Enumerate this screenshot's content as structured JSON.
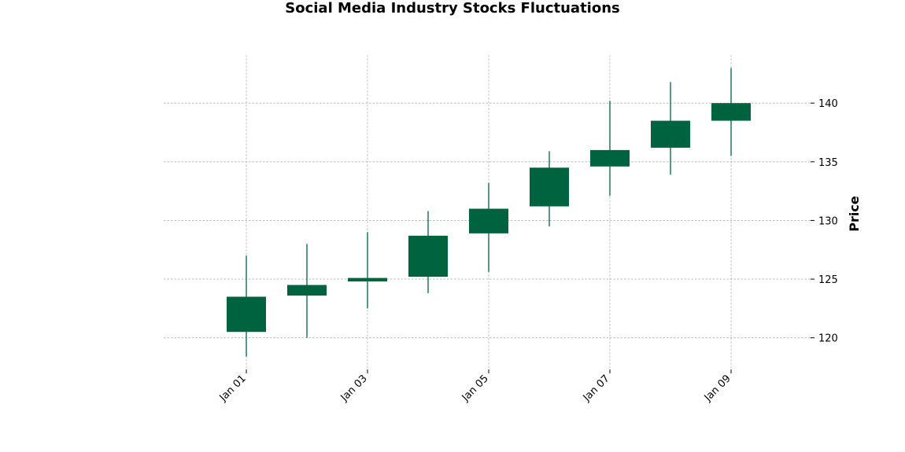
{
  "chart_data": {
    "type": "candlestick",
    "title": "Social Media Industry Stocks Fluctuations",
    "ylabel": "Price",
    "xlabel": "",
    "dates": [
      "Jan 01",
      "Jan 02",
      "Jan 03",
      "Jan 04",
      "Jan 05",
      "Jan 06",
      "Jan 07",
      "Jan 08",
      "Jan 09"
    ],
    "x_tick_labels": [
      "Jan 01",
      "Jan 03",
      "Jan 05",
      "Jan 07",
      "Jan 09"
    ],
    "y_ticks": [
      120,
      125,
      130,
      135,
      140
    ],
    "ylim": [
      117.3,
      144.1
    ],
    "grid": true,
    "up_color": "#006340",
    "candles": [
      {
        "date": "Jan 01",
        "open": 120.5,
        "high": 127.0,
        "low": 118.4,
        "close": 123.5
      },
      {
        "date": "Jan 02",
        "open": 123.6,
        "high": 128.0,
        "low": 120.0,
        "close": 124.5
      },
      {
        "date": "Jan 03",
        "open": 124.8,
        "high": 129.0,
        "low": 122.5,
        "close": 125.1
      },
      {
        "date": "Jan 04",
        "open": 125.2,
        "high": 130.8,
        "low": 123.8,
        "close": 128.7
      },
      {
        "date": "Jan 05",
        "open": 128.9,
        "high": 133.2,
        "low": 125.6,
        "close": 131.0
      },
      {
        "date": "Jan 06",
        "open": 131.2,
        "high": 135.9,
        "low": 129.5,
        "close": 134.5
      },
      {
        "date": "Jan 07",
        "open": 134.6,
        "high": 140.2,
        "low": 132.1,
        "close": 136.0
      },
      {
        "date": "Jan 08",
        "open": 136.2,
        "high": 141.8,
        "low": 133.9,
        "close": 138.5
      },
      {
        "date": "Jan 09",
        "open": 138.5,
        "high": 143.0,
        "low": 135.5,
        "close": 140.0
      }
    ]
  }
}
